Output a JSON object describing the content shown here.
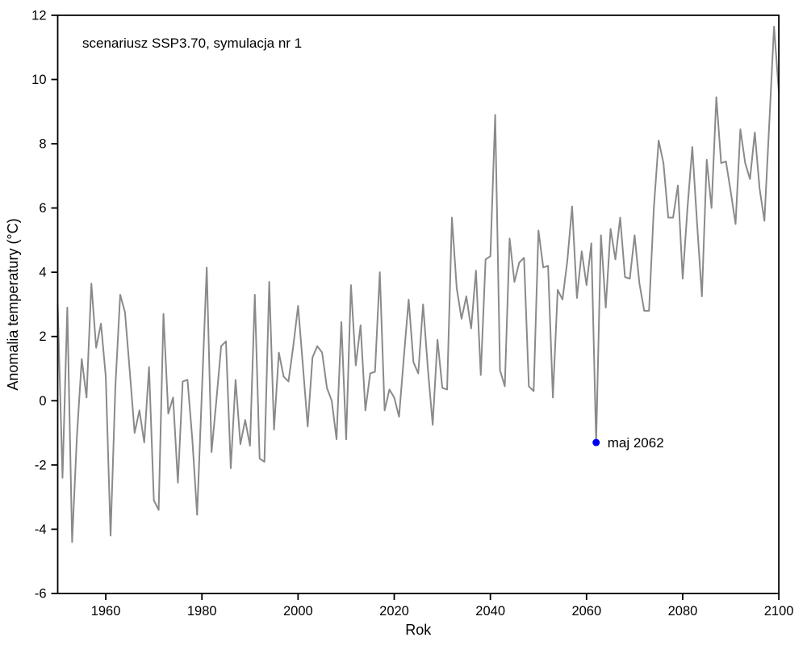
{
  "chart_data": {
    "type": "line",
    "title": "scenariusz SSP3.70, symulacja nr 1",
    "xlabel": "Rok",
    "ylabel": "Anomalia temperatury (°C)",
    "xlim": [
      1950,
      2100
    ],
    "ylim": [
      -6,
      12
    ],
    "x_ticks": [
      1960,
      1980,
      2000,
      2020,
      2040,
      2060,
      2080,
      2100
    ],
    "y_ticks": [
      -6,
      -4,
      -2,
      0,
      2,
      4,
      6,
      8,
      10,
      12
    ],
    "grid": false,
    "legend": "none",
    "line_color": "#8a8a8a",
    "axis_color": "#000000",
    "background_color": "#ffffff",
    "series": [
      {
        "name": "anomalia-temperatury",
        "x_start": 1950,
        "x_step": 1,
        "values": [
          3.0,
          -2.4,
          2.9,
          -4.4,
          -1.1,
          1.3,
          0.1,
          3.65,
          1.65,
          2.4,
          0.75,
          -4.2,
          0.45,
          3.3,
          2.75,
          0.9,
          -1.0,
          -0.3,
          -1.3,
          1.05,
          -3.1,
          -3.4,
          2.7,
          -0.4,
          0.1,
          -2.55,
          0.6,
          0.65,
          -1.2,
          -3.55,
          0.3,
          4.15,
          -1.6,
          0.0,
          1.7,
          1.85,
          -2.1,
          0.65,
          -1.35,
          -0.6,
          -1.4,
          3.3,
          -1.8,
          -1.9,
          3.7,
          -0.9,
          1.5,
          0.75,
          0.6,
          1.7,
          2.95,
          1.1,
          -0.8,
          1.35,
          1.7,
          1.5,
          0.4,
          0.0,
          -1.2,
          2.45,
          -1.2,
          3.6,
          1.1,
          2.35,
          -0.3,
          0.85,
          0.9,
          4.0,
          -0.3,
          0.35,
          0.1,
          -0.5,
          1.35,
          3.15,
          1.2,
          0.85,
          3.0,
          1.0,
          -0.75,
          1.9,
          0.4,
          0.35,
          5.7,
          3.5,
          2.55,
          3.25,
          2.25,
          4.05,
          0.8,
          4.4,
          4.5,
          8.9,
          0.95,
          0.45,
          5.05,
          3.7,
          4.3,
          4.45,
          0.45,
          0.3,
          5.3,
          4.15,
          4.2,
          0.1,
          3.45,
          3.15,
          4.35,
          6.05,
          3.2,
          4.65,
          3.6,
          4.9,
          -1.3,
          5.15,
          2.9,
          5.35,
          4.4,
          5.7,
          3.85,
          3.8,
          5.15,
          3.65,
          2.8,
          2.8,
          6.0,
          8.1,
          7.4,
          5.7,
          5.7,
          6.7,
          3.8,
          6.0,
          7.9,
          5.5,
          3.25,
          7.5,
          6.0,
          9.45,
          7.4,
          7.45,
          6.5,
          5.5,
          8.45,
          7.4,
          6.9,
          8.35,
          6.6,
          5.6,
          8.6,
          11.65,
          9.6
        ]
      }
    ],
    "annotation": {
      "label": "maj 2062",
      "x": 2062,
      "y": -1.3,
      "marker": "circle",
      "color": "#0000ee"
    }
  }
}
